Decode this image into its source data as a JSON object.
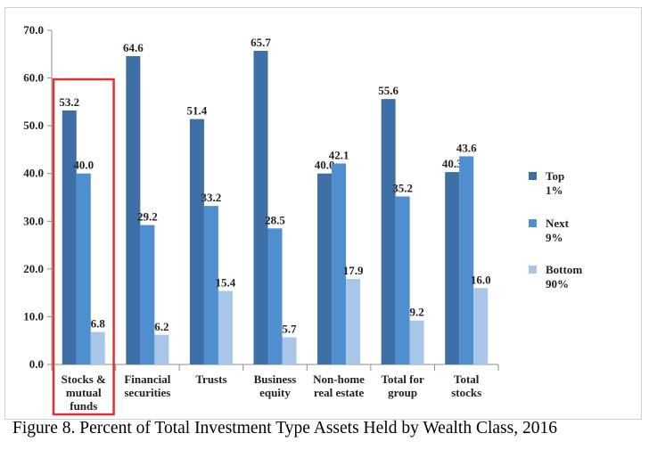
{
  "caption": "Figure 8. Percent of Total Investment Type Assets Held by Wealth Class, 2016",
  "chart_data": {
    "type": "bar",
    "categories": [
      [
        "Stocks &",
        "mutual",
        "funds"
      ],
      [
        "Financial",
        "securities"
      ],
      [
        "Trusts"
      ],
      [
        "Business",
        "equity"
      ],
      [
        "Non-home",
        "real estate"
      ],
      [
        "Total for",
        "group"
      ],
      [
        "Total",
        "stocks"
      ]
    ],
    "series": [
      {
        "name": "Top 1%",
        "legend_lines": [
          "Top",
          "1%"
        ],
        "color": "#3e6fa6",
        "values": [
          53.2,
          64.6,
          51.4,
          65.7,
          40.0,
          55.6,
          40.3
        ]
      },
      {
        "name": "Next 9%",
        "legend_lines": [
          "Next",
          "9%"
        ],
        "color": "#4f8fcf",
        "values": [
          40.0,
          29.2,
          33.2,
          28.5,
          42.1,
          35.2,
          43.6
        ]
      },
      {
        "name": "Bottom 90%",
        "legend_lines": [
          "Bottom",
          "90%"
        ],
        "color": "#a7c6e8",
        "values": [
          6.8,
          6.2,
          15.4,
          5.7,
          17.9,
          9.2,
          16.0
        ]
      }
    ],
    "yticks": [
      "0.0",
      "10.0",
      "20.0",
      "30.0",
      "40.0",
      "50.0",
      "60.0",
      "70.0"
    ],
    "ylim": [
      0,
      70
    ],
    "grid": false,
    "legend_position": "right",
    "highlighted_category": 0,
    "highlight_color": "#e03030",
    "title": "",
    "xlabel": "",
    "ylabel": ""
  }
}
